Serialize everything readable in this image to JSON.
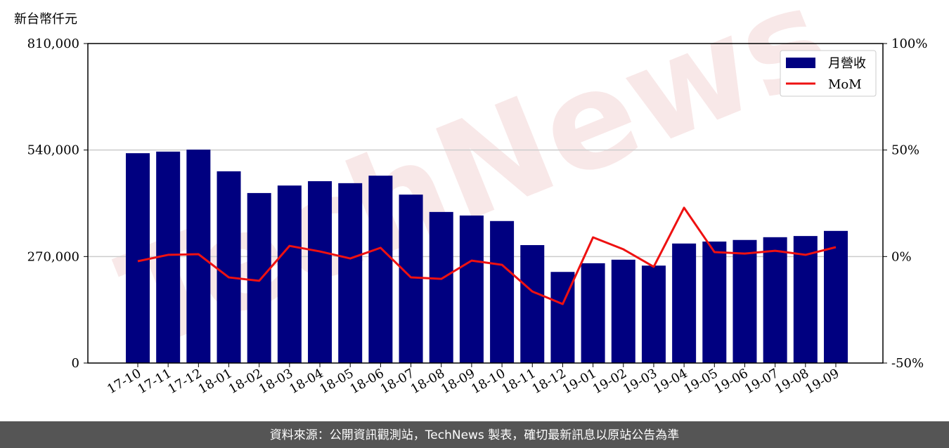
{
  "chart_data": {
    "type": "bar-line",
    "y_label": "新台幣仟元",
    "watermark": "TechNews",
    "source": "資料來源：公開資訊觀測站，TechNews 製表，確切最新訊息以原站公告為準",
    "categories": [
      "17-10",
      "17-11",
      "17-12",
      "18-01",
      "18-02",
      "18-03",
      "18-04",
      "18-05",
      "18-06",
      "18-07",
      "18-08",
      "18-09",
      "18-10",
      "18-11",
      "18-12",
      "19-01",
      "19-02",
      "19-03",
      "19-04",
      "19-05",
      "19-06",
      "19-07",
      "19-08",
      "19-09"
    ],
    "series": [
      {
        "name": "月營收",
        "color": "#000080",
        "values": [
          532000,
          536000,
          541000,
          486000,
          431000,
          450000,
          461000,
          456000,
          475000,
          427000,
          383000,
          374000,
          360000,
          299000,
          231000,
          253000,
          262000,
          247000,
          303000,
          308000,
          312000,
          319000,
          322000,
          335000
        ]
      },
      {
        "name": "MoM",
        "color": "#ee1111",
        "axis": "y2",
        "values": [
          -2.2,
          0.8,
          1.1,
          -9.8,
          -11.4,
          5.0,
          2.4,
          -0.9,
          4.1,
          -9.8,
          -10.5,
          -1.9,
          -3.9,
          -16.4,
          -22.3,
          9.0,
          3.4,
          -4.8,
          22.9,
          2.1,
          1.4,
          2.7,
          0.8,
          4.4
        ]
      }
    ],
    "ylim": [
      0,
      810000
    ],
    "yticks": [
      0,
      {
        "value": 270000,
        "label": "270,000"
      },
      {
        "value": 540000,
        "label": "540,000"
      },
      {
        "value": 810000,
        "label": "810,000"
      }
    ],
    "y2lim": [
      -50,
      100
    ],
    "y2ticks": [
      {
        "value": -50,
        "label": "-50%"
      },
      {
        "value": 0,
        "label": "0%"
      },
      {
        "value": 50,
        "label": "50%"
      },
      {
        "value": 100,
        "label": "100%"
      }
    ],
    "grid": true,
    "legend": "upper right"
  }
}
